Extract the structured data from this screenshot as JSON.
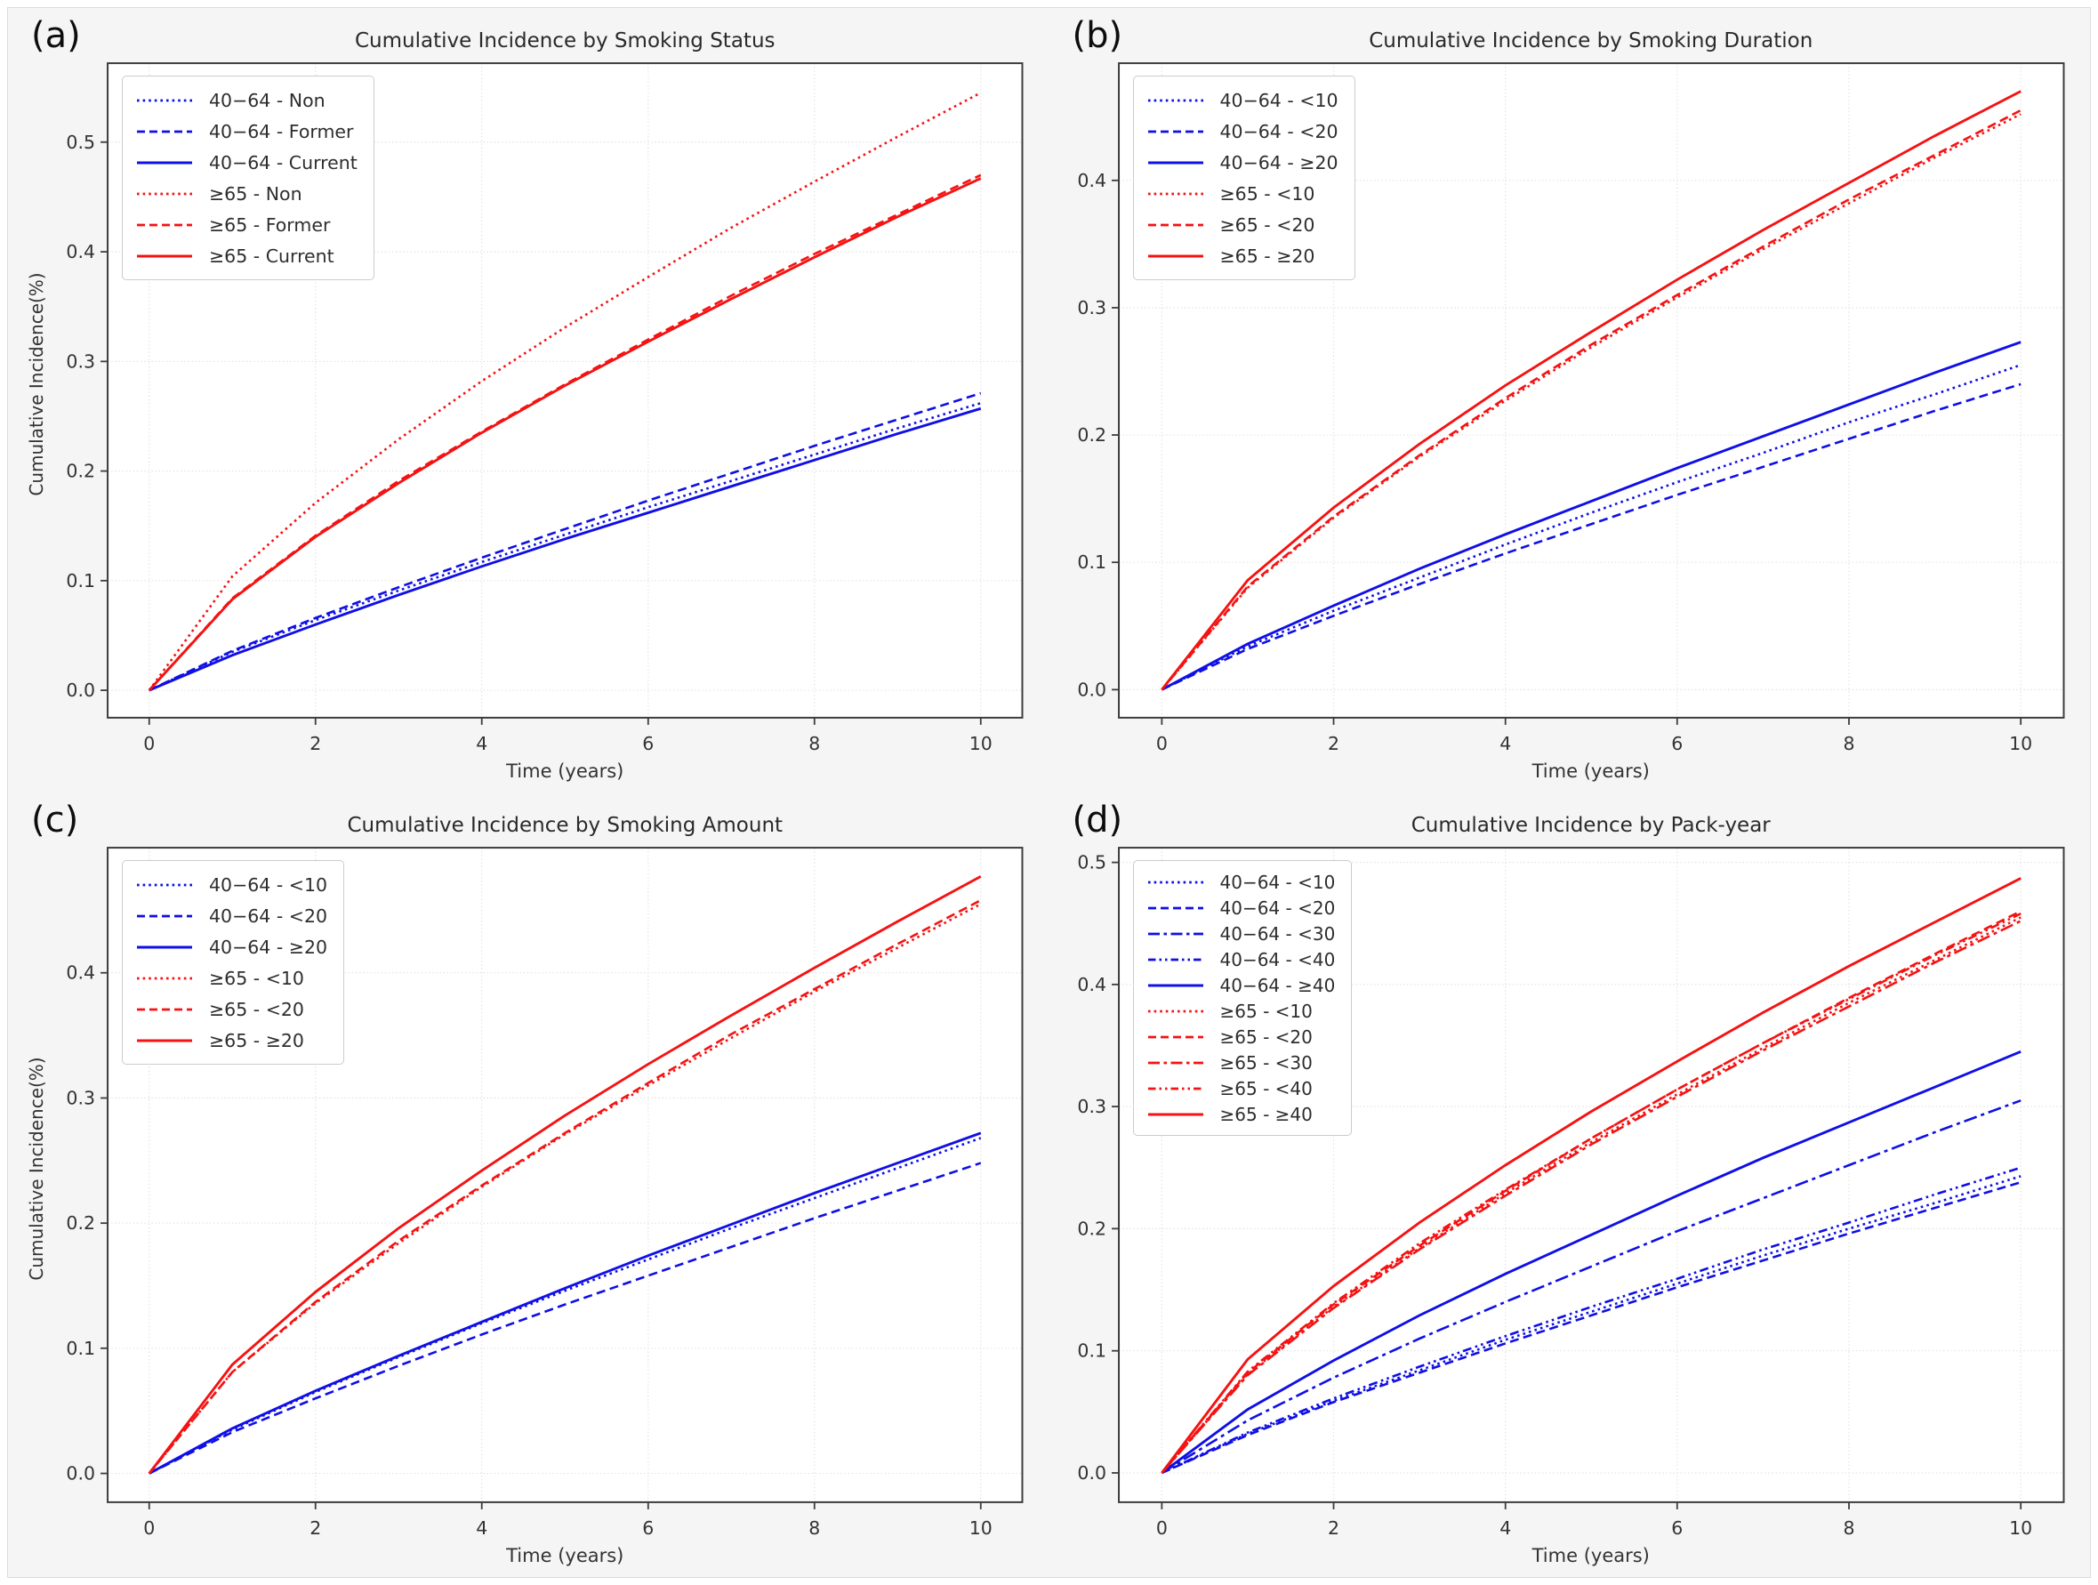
{
  "colors": {
    "blue": "#0f0fe6",
    "red": "#f51212",
    "grid": "#e3e3e3",
    "spine": "#3d3d3d",
    "tick": "#3d3d3d",
    "tick_text": "#333333",
    "plot_bg": "#ffffff",
    "figure_bg": "#f5f5f5"
  },
  "chart_data": [
    {
      "type": "line",
      "panel_label": "(a)",
      "title": "Cumulative Incidence by Smoking Status",
      "xlabel": "Time (years)",
      "ylabel": "Cumulative Incidence(%)",
      "grid": true,
      "legend_position": "upper-left",
      "x": [
        0,
        1,
        2,
        3,
        4,
        5,
        6,
        7,
        8,
        9,
        10
      ],
      "x_ticks": [
        0,
        2,
        4,
        6,
        8,
        10
      ],
      "y_ticks": [
        "0.0",
        "0.1",
        "0.2",
        "0.3",
        "0.4",
        "0.5"
      ],
      "xlim": [
        -0.5,
        10.5
      ],
      "ylim": [
        -0.025,
        0.572
      ],
      "series": [
        {
          "name": "40−64 - Non",
          "color": "blue",
          "style": "dotted",
          "values": [
            0,
            0.035,
            0.064,
            0.091,
            0.117,
            0.142,
            0.167,
            0.191,
            0.215,
            0.239,
            0.262
          ]
        },
        {
          "name": "40−64 - Former",
          "color": "blue",
          "style": "dashed",
          "values": [
            0,
            0.036,
            0.066,
            0.094,
            0.121,
            0.147,
            0.173,
            0.198,
            0.223,
            0.247,
            0.271
          ]
        },
        {
          "name": "40−64 - Current",
          "color": "blue",
          "style": "solid",
          "values": [
            0,
            0.032,
            0.06,
            0.087,
            0.113,
            0.138,
            0.162,
            0.186,
            0.21,
            0.234,
            0.257
          ]
        },
        {
          "name": "≥65 - Non",
          "color": "red",
          "style": "dotted",
          "values": [
            0,
            0.104,
            0.171,
            0.229,
            0.282,
            0.331,
            0.377,
            0.422,
            0.464,
            0.505,
            0.545
          ]
        },
        {
          "name": "≥65 - Former",
          "color": "red",
          "style": "dashed",
          "values": [
            0,
            0.084,
            0.141,
            0.191,
            0.236,
            0.279,
            0.32,
            0.36,
            0.398,
            0.434,
            0.47
          ]
        },
        {
          "name": "≥65 - Current",
          "color": "red",
          "style": "solid",
          "values": [
            0,
            0.083,
            0.14,
            0.189,
            0.235,
            0.278,
            0.318,
            0.357,
            0.395,
            0.432,
            0.467
          ]
        }
      ]
    },
    {
      "type": "line",
      "panel_label": "(b)",
      "title": "Cumulative Incidence by Smoking Duration",
      "xlabel": "Time (years)",
      "ylabel": "",
      "grid": true,
      "legend_position": "upper-left",
      "x": [
        0,
        1,
        2,
        3,
        4,
        5,
        6,
        7,
        8,
        9,
        10
      ],
      "x_ticks": [
        0,
        2,
        4,
        6,
        8,
        10
      ],
      "y_ticks": [
        "0.0",
        "0.1",
        "0.2",
        "0.3",
        "0.4"
      ],
      "xlim": [
        -0.5,
        10.5
      ],
      "ylim": [
        -0.022,
        0.492
      ],
      "series": [
        {
          "name": "40−64 - <10",
          "color": "blue",
          "style": "dotted",
          "values": [
            0,
            0.034,
            0.062,
            0.088,
            0.114,
            0.139,
            0.163,
            0.186,
            0.21,
            0.232,
            0.255
          ]
        },
        {
          "name": "40−64 - <20",
          "color": "blue",
          "style": "dashed",
          "values": [
            0,
            0.032,
            0.058,
            0.083,
            0.107,
            0.13,
            0.153,
            0.175,
            0.197,
            0.219,
            0.24
          ]
        },
        {
          "name": "40−64 - ≥20",
          "color": "blue",
          "style": "solid",
          "values": [
            0,
            0.036,
            0.066,
            0.095,
            0.122,
            0.148,
            0.174,
            0.199,
            0.224,
            0.249,
            0.273
          ]
        },
        {
          "name": "≥65 - <10",
          "color": "red",
          "style": "dotted",
          "values": [
            0,
            0.08,
            0.135,
            0.183,
            0.227,
            0.269,
            0.308,
            0.346,
            0.382,
            0.418,
            0.452
          ]
        },
        {
          "name": "≥65 - <20",
          "color": "red",
          "style": "dashed",
          "values": [
            0,
            0.081,
            0.136,
            0.184,
            0.229,
            0.271,
            0.31,
            0.348,
            0.385,
            0.42,
            0.455
          ]
        },
        {
          "name": "≥65 - ≥20",
          "color": "red",
          "style": "solid",
          "values": [
            0,
            0.086,
            0.143,
            0.193,
            0.239,
            0.281,
            0.322,
            0.361,
            0.398,
            0.435,
            0.47
          ]
        }
      ]
    },
    {
      "type": "line",
      "panel_label": "(c)",
      "title": "Cumulative Incidence by Smoking Amount",
      "xlabel": "Time (years)",
      "ylabel": "Cumulative Incidence(%)",
      "grid": true,
      "legend_position": "upper-left",
      "x": [
        0,
        1,
        2,
        3,
        4,
        5,
        6,
        7,
        8,
        9,
        10
      ],
      "x_ticks": [
        0,
        2,
        4,
        6,
        8,
        10
      ],
      "y_ticks": [
        "0.0",
        "0.1",
        "0.2",
        "0.3",
        "0.4"
      ],
      "xlim": [
        -0.5,
        10.5
      ],
      "ylim": [
        -0.023,
        0.5
      ],
      "series": [
        {
          "name": "40−64 - <10",
          "color": "blue",
          "style": "dotted",
          "values": [
            0,
            0.035,
            0.065,
            0.093,
            0.12,
            0.146,
            0.171,
            0.196,
            0.22,
            0.244,
            0.268
          ]
        },
        {
          "name": "40−64 - <20",
          "color": "blue",
          "style": "dashed",
          "values": [
            0,
            0.033,
            0.06,
            0.086,
            0.111,
            0.135,
            0.158,
            0.181,
            0.204,
            0.226,
            0.248
          ]
        },
        {
          "name": "40−64 - ≥20",
          "color": "blue",
          "style": "solid",
          "values": [
            0,
            0.036,
            0.066,
            0.094,
            0.121,
            0.148,
            0.174,
            0.199,
            0.224,
            0.248,
            0.272
          ]
        },
        {
          "name": "≥65 - <10",
          "color": "red",
          "style": "dotted",
          "values": [
            0,
            0.081,
            0.136,
            0.184,
            0.229,
            0.271,
            0.31,
            0.348,
            0.385,
            0.42,
            0.455
          ]
        },
        {
          "name": "≥65 - <20",
          "color": "red",
          "style": "dashed",
          "values": [
            0,
            0.081,
            0.137,
            0.186,
            0.23,
            0.272,
            0.312,
            0.351,
            0.387,
            0.423,
            0.458
          ]
        },
        {
          "name": "≥65 - ≥20",
          "color": "red",
          "style": "solid",
          "values": [
            0,
            0.087,
            0.145,
            0.196,
            0.242,
            0.286,
            0.327,
            0.366,
            0.404,
            0.441,
            0.477
          ]
        }
      ]
    },
    {
      "type": "line",
      "panel_label": "(d)",
      "title": "Cumulative Incidence by Pack-year",
      "xlabel": "Time (years)",
      "ylabel": "",
      "grid": true,
      "legend_position": "upper-left",
      "x": [
        0,
        1,
        2,
        3,
        4,
        5,
        6,
        7,
        8,
        9,
        10
      ],
      "x_ticks": [
        0,
        2,
        4,
        6,
        8,
        10
      ],
      "y_ticks": [
        "0.0",
        "0.1",
        "0.2",
        "0.3",
        "0.4",
        "0.5"
      ],
      "xlim": [
        -0.5,
        10.5
      ],
      "ylim": [
        -0.024,
        0.512
      ],
      "series": [
        {
          "name": "40−64 - <10",
          "color": "blue",
          "style": "dotted",
          "values": [
            0,
            0.032,
            0.059,
            0.084,
            0.109,
            0.132,
            0.155,
            0.178,
            0.2,
            0.221,
            0.243
          ]
        },
        {
          "name": "40−64 - <20",
          "color": "blue",
          "style": "dashed",
          "values": [
            0,
            0.031,
            0.058,
            0.082,
            0.106,
            0.129,
            0.152,
            0.174,
            0.196,
            0.217,
            0.238
          ]
        },
        {
          "name": "40−64 - <30",
          "color": "blue",
          "style": "dashdot",
          "values": [
            0,
            0.043,
            0.078,
            0.11,
            0.14,
            0.169,
            0.198,
            0.225,
            0.252,
            0.279,
            0.305
          ]
        },
        {
          "name": "40−64 - <40",
          "color": "blue",
          "style": "dashdotdot",
          "values": [
            0,
            0.033,
            0.061,
            0.087,
            0.112,
            0.136,
            0.159,
            0.183,
            0.205,
            0.228,
            0.25
          ]
        },
        {
          "name": "40−64 - ≥40",
          "color": "blue",
          "style": "solid",
          "values": [
            0,
            0.052,
            0.092,
            0.129,
            0.163,
            0.195,
            0.227,
            0.258,
            0.287,
            0.316,
            0.345
          ]
        },
        {
          "name": "≥65 - <10",
          "color": "red",
          "style": "dotted",
          "values": [
            0,
            0.081,
            0.136,
            0.184,
            0.229,
            0.271,
            0.31,
            0.348,
            0.385,
            0.42,
            0.455
          ]
        },
        {
          "name": "≥65 - <20",
          "color": "red",
          "style": "dashed",
          "values": [
            0,
            0.082,
            0.138,
            0.186,
            0.231,
            0.274,
            0.314,
            0.352,
            0.389,
            0.425,
            0.46
          ]
        },
        {
          "name": "≥65 - <30",
          "color": "red",
          "style": "dashdot",
          "values": [
            0,
            0.08,
            0.135,
            0.183,
            0.227,
            0.269,
            0.308,
            0.346,
            0.382,
            0.418,
            0.452
          ]
        },
        {
          "name": "≥65 - <40",
          "color": "red",
          "style": "dashdotdot",
          "values": [
            0,
            0.083,
            0.139,
            0.188,
            0.232,
            0.274,
            0.314,
            0.352,
            0.388,
            0.424,
            0.458
          ]
        },
        {
          "name": "≥65 - ≥40",
          "color": "red",
          "style": "solid",
          "values": [
            0,
            0.093,
            0.153,
            0.205,
            0.252,
            0.296,
            0.337,
            0.377,
            0.415,
            0.451,
            0.487
          ]
        }
      ]
    }
  ]
}
